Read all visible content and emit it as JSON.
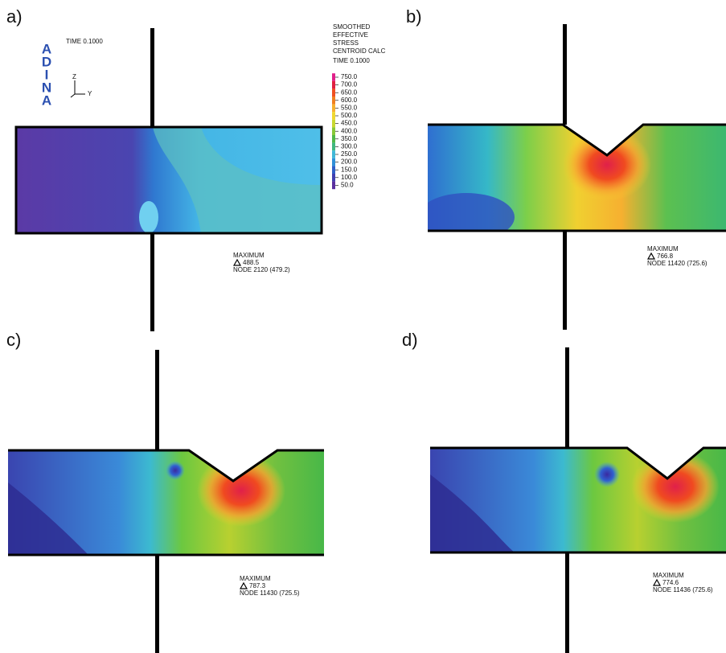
{
  "logo": {
    "letters": [
      "A",
      "D",
      "I",
      "N",
      "A"
    ],
    "time": "TIME 0.1000",
    "axis_z": "Z",
    "axis_y": "Y"
  },
  "legend": {
    "title": [
      "SMOOTHED",
      "EFFECTIVE",
      "STRESS",
      "CENTROID CALC"
    ],
    "time": "TIME 0.1000",
    "levels": [
      "750.0",
      "700.0",
      "650.0",
      "600.0",
      "550.0",
      "500.0",
      "450.0",
      "400.0",
      "350.0",
      "300.0",
      "250.0",
      "200.0",
      "150.0",
      "100.0",
      "50.0"
    ]
  },
  "panels": [
    {
      "label": "a)",
      "max_title": "MAXIMUM",
      "max_value": "488.5",
      "max_node": "NODE 2120 (479.2)"
    },
    {
      "label": "b)",
      "max_title": "MAXIMUM",
      "max_value": "766.8",
      "max_node": "NODE 11420 (725.6)"
    },
    {
      "label": "c)",
      "max_title": "MAXIMUM",
      "max_value": "787.3",
      "max_node": "NODE 11430 (725.5)"
    },
    {
      "label": "d)",
      "max_title": "MAXIMUM",
      "max_value": "774.6",
      "max_node": "NODE 11436 (725.6)"
    }
  ]
}
